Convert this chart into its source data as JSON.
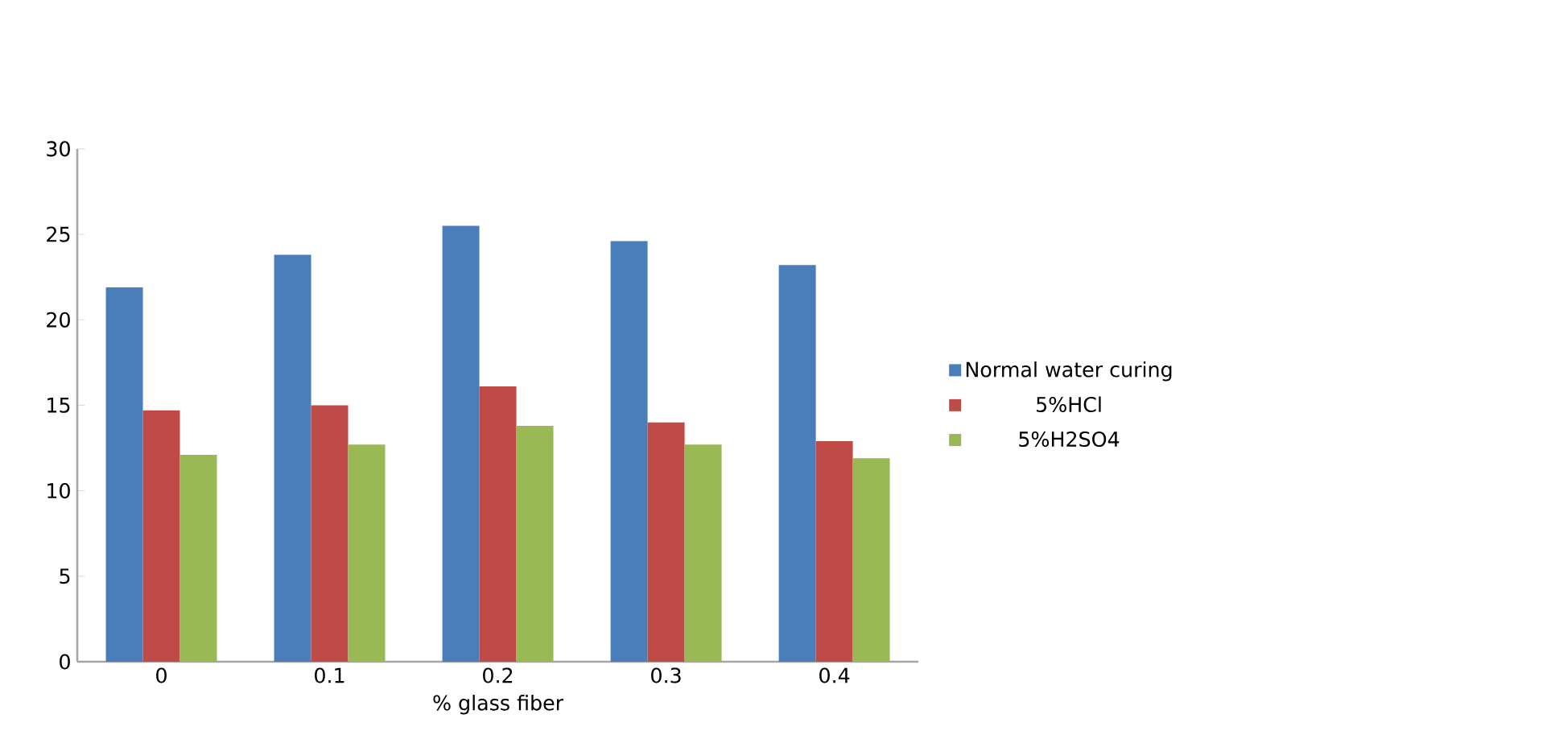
{
  "chart_data": {
    "type": "bar",
    "xlabel": "% glass fiber",
    "categories": [
      "0",
      "0.1",
      "0.2",
      "0.3",
      "0.4"
    ],
    "series": [
      {
        "name": "Normal water curing",
        "color": "#4a7ebb",
        "values": [
          21.9,
          23.8,
          25.5,
          24.6,
          23.2
        ]
      },
      {
        "name": "5%HCl",
        "color": "#be4b48",
        "values": [
          14.7,
          15.0,
          16.1,
          14.0,
          12.9
        ]
      },
      {
        "name": "5%H2SO4",
        "color": "#98b954",
        "values": [
          12.1,
          12.7,
          13.8,
          12.7,
          11.9
        ]
      }
    ],
    "ylim": [
      0,
      30
    ],
    "yticks": [
      0,
      5,
      10,
      15,
      20,
      25,
      30
    ],
    "grid": false,
    "legend": "right"
  }
}
